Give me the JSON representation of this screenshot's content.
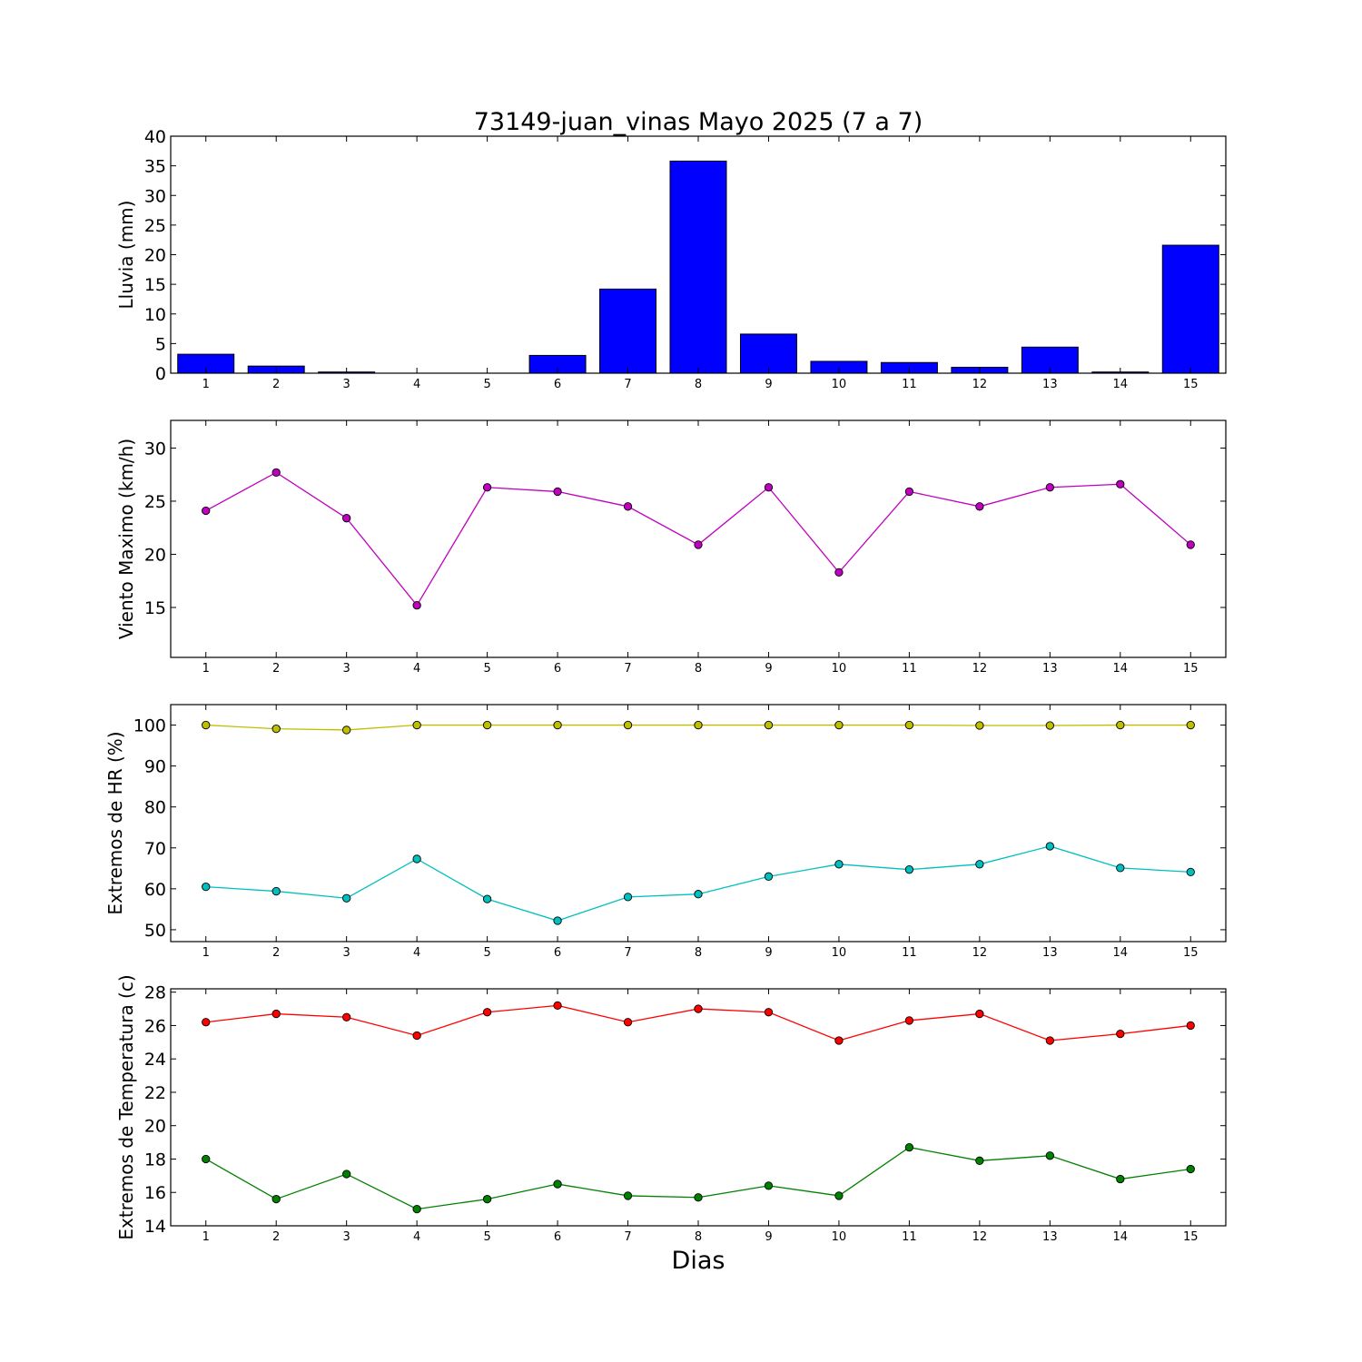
{
  "figure": {
    "title": "73149-juan_vinas Mayo 2025  (7 a 7)",
    "xlabel": "Dias"
  },
  "chart_data": [
    {
      "type": "bar",
      "ylabel": "Lluvia (mm)",
      "ylim": [
        0,
        40
      ],
      "yticks": [
        0,
        5,
        10,
        15,
        20,
        25,
        30,
        35,
        40
      ],
      "categories": [
        1,
        2,
        3,
        4,
        5,
        6,
        7,
        8,
        9,
        10,
        11,
        12,
        13,
        14,
        15
      ],
      "series": [
        {
          "color": "#0000ff",
          "values": [
            3.2,
            1.2,
            0.2,
            0.0,
            0.0,
            3.0,
            14.2,
            35.8,
            6.6,
            2.0,
            1.8,
            1.0,
            4.4,
            0.2,
            21.6
          ]
        }
      ]
    },
    {
      "type": "line",
      "ylabel": "Viento Maximo (km/h)",
      "ylim": [
        10.3,
        32.6
      ],
      "yticks": [
        15,
        20,
        25,
        30
      ],
      "categories": [
        1,
        2,
        3,
        4,
        5,
        6,
        7,
        8,
        9,
        10,
        11,
        12,
        13,
        14,
        15
      ],
      "series": [
        {
          "color": "#bf00bf",
          "values": [
            24.1,
            27.7,
            23.4,
            15.2,
            26.3,
            25.9,
            24.5,
            20.9,
            26.3,
            18.3,
            25.9,
            24.5,
            26.3,
            26.6,
            20.9
          ]
        }
      ]
    },
    {
      "type": "line",
      "ylabel": "Extremos de HR (%)",
      "ylim": [
        47.1,
        105
      ],
      "yticks": [
        50,
        60,
        70,
        80,
        90,
        100
      ],
      "categories": [
        1,
        2,
        3,
        4,
        5,
        6,
        7,
        8,
        9,
        10,
        11,
        12,
        13,
        14,
        15
      ],
      "series": [
        {
          "color": "#bfbf00",
          "values": [
            100,
            99.1,
            98.8,
            100,
            100,
            100,
            100,
            100,
            100,
            100,
            100,
            99.9,
            99.9,
            100,
            100
          ]
        },
        {
          "color": "#00bfbf",
          "values": [
            60.5,
            59.4,
            57.7,
            67.3,
            57.5,
            52.2,
            58.0,
            58.7,
            63.0,
            66.0,
            64.7,
            66.0,
            70.4,
            65.1,
            64.1
          ]
        }
      ]
    },
    {
      "type": "line",
      "ylabel": "Extremos de Temperatura (c)",
      "ylim": [
        14,
        28.2
      ],
      "yticks": [
        14,
        16,
        18,
        20,
        22,
        24,
        26,
        28
      ],
      "categories": [
        1,
        2,
        3,
        4,
        5,
        6,
        7,
        8,
        9,
        10,
        11,
        12,
        13,
        14,
        15
      ],
      "series": [
        {
          "color": "#ff0000",
          "values": [
            26.2,
            26.7,
            26.5,
            25.4,
            26.8,
            27.2,
            26.2,
            27.0,
            26.8,
            25.1,
            26.3,
            26.7,
            25.1,
            25.5,
            26.0
          ]
        },
        {
          "color": "#008000",
          "values": [
            18.0,
            15.6,
            17.1,
            15.0,
            15.6,
            16.5,
            15.8,
            15.7,
            16.4,
            15.8,
            18.7,
            17.9,
            18.2,
            16.8,
            17.4
          ]
        }
      ]
    }
  ]
}
